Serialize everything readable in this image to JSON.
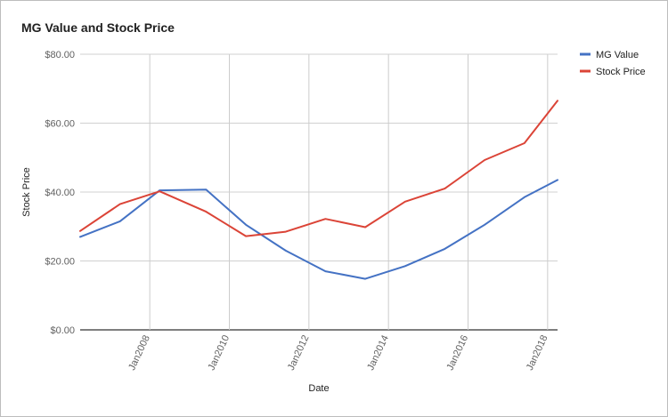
{
  "chart_data": {
    "type": "line",
    "title": "MG Value and Stock Price",
    "xlabel": "Date",
    "ylabel": "Stock Price",
    "x_tick_labels": [
      "Jan2008",
      "Jan2010",
      "Jan2012",
      "Jan2014",
      "Jan2016",
      "Jan2018"
    ],
    "y_tick_labels": [
      "$0.00",
      "$20.00",
      "$40.00",
      "$60.00",
      "$80.00"
    ],
    "y_ticks": [
      0,
      20,
      40,
      60,
      80
    ],
    "ylim": [
      0,
      80
    ],
    "x_range": [
      "2006-04",
      "2018-04"
    ],
    "grid": true,
    "legend_position": "top-right",
    "series": [
      {
        "name": "MG Value",
        "color": "#4472c4",
        "points": [
          {
            "x": "2006-04",
            "y": 27.0
          },
          {
            "x": "2007-04",
            "y": 31.5
          },
          {
            "x": "2008-04",
            "y": 40.5
          },
          {
            "x": "2009-06",
            "y": 40.7
          },
          {
            "x": "2010-06",
            "y": 30.5
          },
          {
            "x": "2011-06",
            "y": 23.0
          },
          {
            "x": "2012-06",
            "y": 17.0
          },
          {
            "x": "2013-06",
            "y": 14.8
          },
          {
            "x": "2014-06",
            "y": 18.5
          },
          {
            "x": "2015-06",
            "y": 23.5
          },
          {
            "x": "2016-06",
            "y": 30.5
          },
          {
            "x": "2017-06",
            "y": 38.5
          },
          {
            "x": "2018-04",
            "y": 43.5
          }
        ]
      },
      {
        "name": "Stock Price",
        "color": "#db4437",
        "points": [
          {
            "x": "2006-04",
            "y": 28.7
          },
          {
            "x": "2007-04",
            "y": 36.5
          },
          {
            "x": "2008-04",
            "y": 40.2
          },
          {
            "x": "2009-06",
            "y": 34.3
          },
          {
            "x": "2010-06",
            "y": 27.2
          },
          {
            "x": "2011-06",
            "y": 28.5
          },
          {
            "x": "2012-06",
            "y": 32.2
          },
          {
            "x": "2013-06",
            "y": 29.8
          },
          {
            "x": "2014-06",
            "y": 37.2
          },
          {
            "x": "2015-06",
            "y": 41.0
          },
          {
            "x": "2016-06",
            "y": 49.3
          },
          {
            "x": "2017-06",
            "y": 54.2
          },
          {
            "x": "2018-04",
            "y": 66.5
          }
        ]
      }
    ]
  }
}
